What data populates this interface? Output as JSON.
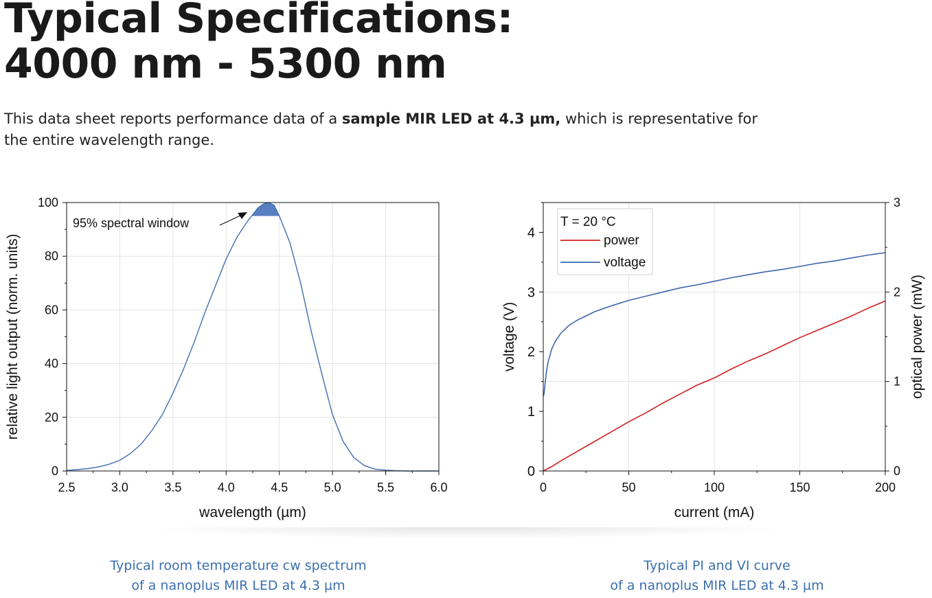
{
  "header": {
    "title_line1": "Typical Specifications:",
    "title_line2": "4000 nm - 5300 nm",
    "intro_before": "This data sheet reports performance data of a ",
    "intro_bold": "sample MIR LED at 4.3 µm,",
    "intro_after": " which is representative for the entire wavelength range."
  },
  "captions": {
    "left_line1": "Typical room temperature cw spectrum",
    "left_line2": "of a nanoplus MIR LED at 4.3 µm",
    "right_line1": "Typical PI and VI curve",
    "right_line2": "of a nanoplus MIR LED at 4.3 µm"
  },
  "colors": {
    "spectrum": "#3f6eb0",
    "window_fill": "#5a7fc0",
    "power": "#d01f1f",
    "voltage": "#3c66ad",
    "caption": "#3b6fae"
  },
  "chart_data": [
    {
      "type": "line",
      "xlabel": "wavelength (µm)",
      "ylabel": "relative light output (norm. units)",
      "xlim": [
        2.5,
        6.0
      ],
      "ylim": [
        0,
        100
      ],
      "xticks": [
        "2.5",
        "3.0",
        "3.5",
        "4.0",
        "4.5",
        "5.0",
        "5.5",
        "6.0"
      ],
      "yticks": [
        "0",
        "20",
        "40",
        "60",
        "80",
        "100"
      ],
      "grid": true,
      "annotation": "95% spectral window",
      "spectral_window": {
        "threshold": 95,
        "x": [
          4.25,
          4.55
        ]
      },
      "series": [
        {
          "x": [
            2.5,
            2.6,
            2.7,
            2.8,
            2.9,
            3.0,
            3.1,
            3.2,
            3.3,
            3.4,
            3.5,
            3.6,
            3.7,
            3.8,
            3.9,
            4.0,
            4.1,
            4.2,
            4.3,
            4.35,
            4.4,
            4.45,
            4.5,
            4.6,
            4.7,
            4.8,
            4.9,
            5.0,
            5.1,
            5.2,
            5.3,
            5.4,
            5.5,
            5.6,
            5.7,
            5.8,
            5.9,
            6.0
          ],
          "y": [
            0.2,
            0.5,
            0.9,
            1.5,
            2.5,
            4,
            6.5,
            10,
            15,
            21,
            29,
            38,
            48,
            59,
            69,
            79,
            87,
            93,
            98,
            99.5,
            100,
            99,
            95,
            85,
            70,
            52,
            36,
            21,
            11,
            5,
            2,
            0.7,
            0.3,
            0.1,
            0,
            0,
            0,
            0
          ]
        }
      ]
    },
    {
      "type": "line",
      "xlabel": "current (mA)",
      "ylabel": "voltage (V)",
      "y2label": "optical power (mW)",
      "xlim": [
        0,
        200
      ],
      "ylim": [
        0,
        4.5
      ],
      "y2lim": [
        0,
        3
      ],
      "xticks": [
        "0",
        "50",
        "100",
        "150",
        "200"
      ],
      "yticks": [
        "0",
        "1",
        "2",
        "3",
        "4"
      ],
      "y2ticks": [
        "0",
        "1",
        "2",
        "3"
      ],
      "grid": true,
      "legend_title": "T = 20 °C",
      "legend_position": "top-left",
      "series": [
        {
          "name": "power",
          "axis": "right",
          "x": [
            0,
            5,
            10,
            20,
            30,
            40,
            50,
            60,
            70,
            80,
            90,
            100,
            110,
            120,
            130,
            140,
            150,
            160,
            170,
            180,
            190,
            200
          ],
          "y": [
            0,
            0.05,
            0.11,
            0.22,
            0.33,
            0.44,
            0.55,
            0.65,
            0.76,
            0.86,
            0.96,
            1.04,
            1.14,
            1.23,
            1.31,
            1.4,
            1.49,
            1.57,
            1.65,
            1.73,
            1.82,
            1.9
          ]
        },
        {
          "name": "voltage",
          "axis": "left",
          "x": [
            0,
            0.5,
            1,
            2,
            3,
            5,
            7,
            10,
            15,
            20,
            25,
            30,
            40,
            50,
            60,
            70,
            80,
            90,
            100,
            110,
            120,
            130,
            140,
            150,
            160,
            170,
            180,
            190,
            200
          ],
          "y": [
            1.25,
            1.3,
            1.45,
            1.7,
            1.85,
            2.05,
            2.17,
            2.3,
            2.44,
            2.53,
            2.6,
            2.67,
            2.77,
            2.86,
            2.93,
            3.0,
            3.07,
            3.12,
            3.18,
            3.24,
            3.29,
            3.34,
            3.38,
            3.43,
            3.48,
            3.52,
            3.57,
            3.62,
            3.66
          ]
        }
      ]
    }
  ]
}
